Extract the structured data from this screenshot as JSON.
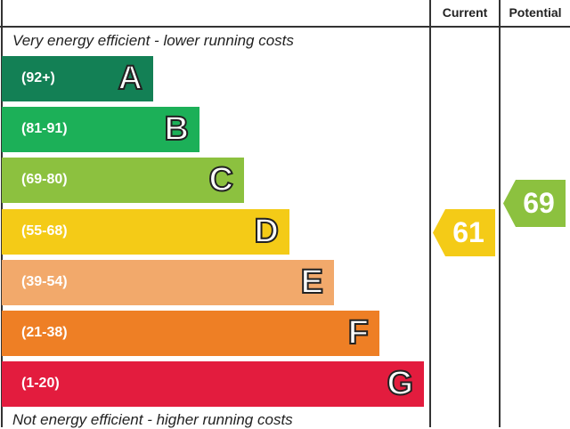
{
  "chart_data": {
    "type": "bar",
    "title": "",
    "header": {
      "current": "Current",
      "potential": "Potential"
    },
    "top_caption": "Very energy efficient - lower running costs",
    "bottom_caption": "Not energy efficient - higher running costs",
    "bands": [
      {
        "letter": "A",
        "range": "(92+)",
        "color": "#138055"
      },
      {
        "letter": "B",
        "range": "(81-91)",
        "color": "#1cb058"
      },
      {
        "letter": "C",
        "range": "(69-80)",
        "color": "#8cc13f"
      },
      {
        "letter": "D",
        "range": "(55-68)",
        "color": "#f4cb17"
      },
      {
        "letter": "E",
        "range": "(39-54)",
        "color": "#f2a96b"
      },
      {
        "letter": "F",
        "range": "(21-38)",
        "color": "#ee7f25"
      },
      {
        "letter": "G",
        "range": "(1-20)",
        "color": "#e31c3e"
      }
    ],
    "current": {
      "value": 61,
      "label": "61",
      "band": "D",
      "color": "#f4cb17"
    },
    "potential": {
      "value": 69,
      "label": "69",
      "band": "C",
      "color": "#8cc13f"
    }
  }
}
